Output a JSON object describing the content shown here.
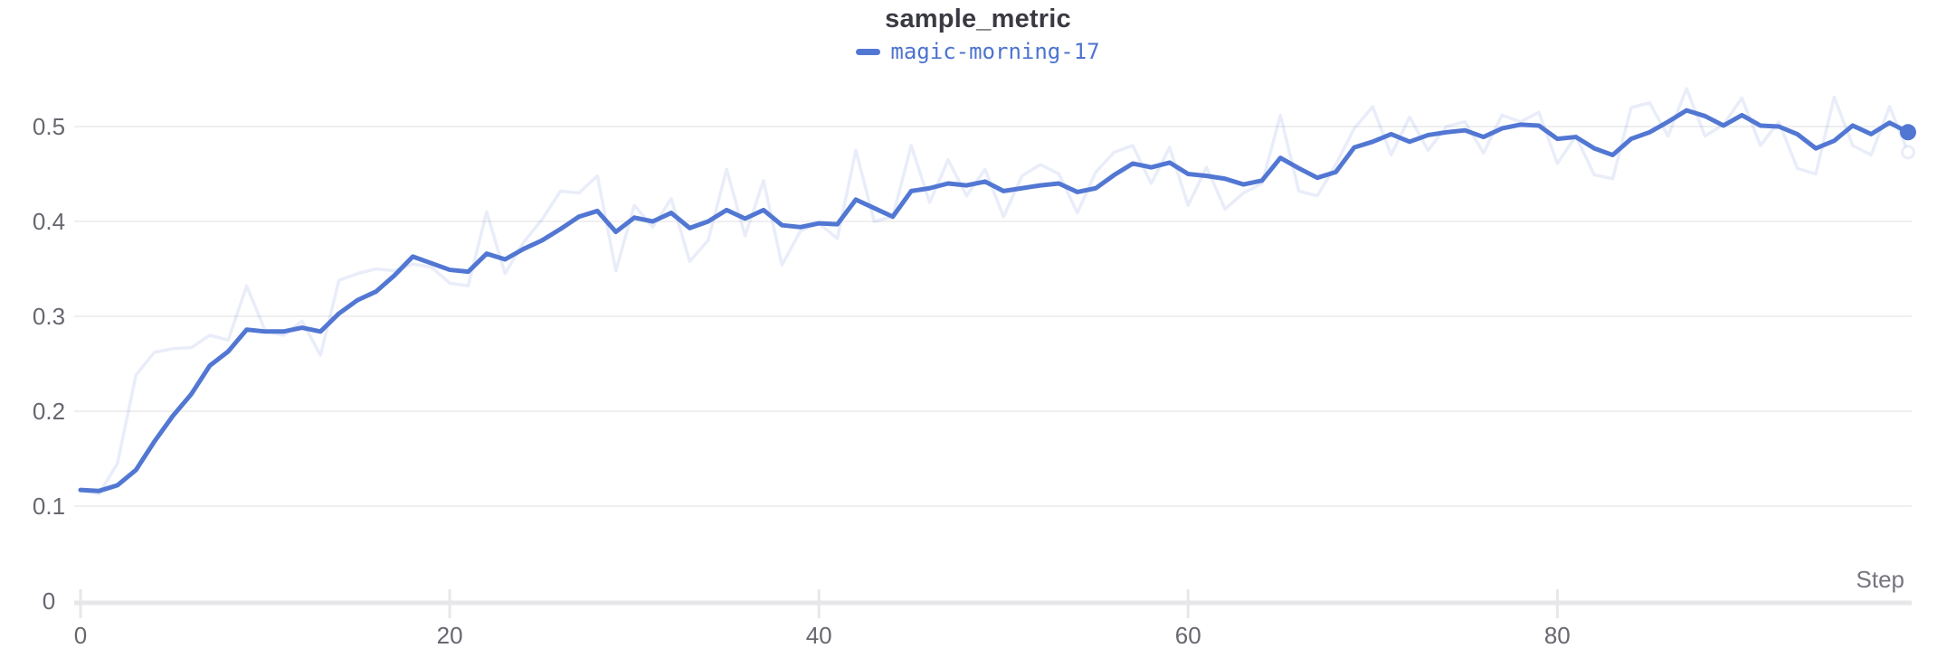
{
  "title": "sample_metric",
  "legend": {
    "items": [
      {
        "label": "magic-morning-17",
        "color": "#5277d3"
      }
    ]
  },
  "axes": {
    "xlabel": "Step",
    "x_ticks": [
      0,
      20,
      40,
      60,
      80
    ],
    "y_ticks": [
      0,
      0.1,
      0.2,
      0.3,
      0.4,
      0.5
    ]
  },
  "colors": {
    "line": "#5277d3",
    "line_faint": "rgba(82,119,211,0.13)",
    "gridline": "#efeff0",
    "axis": "#e7e7ea",
    "tick_text": "#67676f",
    "title_text": "#3a3a42",
    "legend_text": "#4c73cf"
  },
  "chart_data": {
    "type": "line",
    "title": "sample_metric",
    "xlabel": "Step",
    "ylabel": "",
    "xlim": [
      0,
      99.5
    ],
    "ylim": [
      0,
      0.55
    ],
    "x_ticks": [
      0,
      20,
      40,
      60,
      80
    ],
    "y_ticks": [
      0,
      0.1,
      0.2,
      0.3,
      0.4,
      0.5
    ],
    "grid": "horizontal",
    "legend_position": "top-center",
    "x": [
      0,
      1,
      2,
      3,
      4,
      5,
      6,
      7,
      8,
      9,
      10,
      11,
      12,
      13,
      14,
      15,
      16,
      17,
      18,
      19,
      20,
      21,
      22,
      23,
      24,
      25,
      26,
      27,
      28,
      29,
      30,
      31,
      32,
      33,
      34,
      35,
      36,
      37,
      38,
      39,
      40,
      41,
      42,
      43,
      44,
      45,
      46,
      47,
      48,
      49,
      50,
      51,
      52,
      53,
      54,
      55,
      56,
      57,
      58,
      59,
      60,
      61,
      62,
      63,
      64,
      65,
      66,
      67,
      68,
      69,
      70,
      71,
      72,
      73,
      74,
      75,
      76,
      77,
      78,
      79,
      80,
      81,
      82,
      83,
      84,
      85,
      86,
      87,
      88,
      89,
      90,
      91,
      92,
      93,
      94,
      95,
      96,
      97,
      98,
      99
    ],
    "series": [
      {
        "name": "magic-morning-17",
        "role": "smoothed",
        "color": "#5277d3",
        "values": [
          0.117,
          0.116,
          0.122,
          0.138,
          0.168,
          0.195,
          0.218,
          0.248,
          0.263,
          0.286,
          0.284,
          0.284,
          0.288,
          0.284,
          0.303,
          0.317,
          0.326,
          0.343,
          0.363,
          0.356,
          0.349,
          0.347,
          0.366,
          0.36,
          0.371,
          0.38,
          0.392,
          0.405,
          0.411,
          0.389,
          0.404,
          0.4,
          0.409,
          0.393,
          0.4,
          0.412,
          0.403,
          0.412,
          0.396,
          0.394,
          0.398,
          0.397,
          0.423,
          0.414,
          0.405,
          0.432,
          0.435,
          0.44,
          0.438,
          0.442,
          0.432,
          0.435,
          0.438,
          0.44,
          0.431,
          0.435,
          0.449,
          0.461,
          0.457,
          0.462,
          0.45,
          0.448,
          0.445,
          0.439,
          0.443,
          0.467,
          0.456,
          0.446,
          0.452,
          0.478,
          0.484,
          0.492,
          0.484,
          0.491,
          0.494,
          0.496,
          0.489,
          0.498,
          0.502,
          0.501,
          0.487,
          0.489,
          0.477,
          0.47,
          0.487,
          0.494,
          0.505,
          0.517,
          0.511,
          0.501,
          0.512,
          0.501,
          0.5,
          0.492,
          0.477,
          0.485,
          0.501,
          0.492,
          0.504,
          0.494
        ]
      },
      {
        "name": "magic-morning-17 (original)",
        "role": "raw",
        "color": "rgba(82,119,211,0.13)",
        "values": [
          0.117,
          0.113,
          0.145,
          0.238,
          0.262,
          0.266,
          0.267,
          0.28,
          0.275,
          0.332,
          0.285,
          0.28,
          0.295,
          0.259,
          0.338,
          0.345,
          0.35,
          0.348,
          0.355,
          0.352,
          0.335,
          0.332,
          0.41,
          0.345,
          0.378,
          0.402,
          0.432,
          0.43,
          0.448,
          0.348,
          0.417,
          0.394,
          0.424,
          0.358,
          0.38,
          0.455,
          0.385,
          0.443,
          0.354,
          0.39,
          0.398,
          0.382,
          0.475,
          0.4,
          0.405,
          0.48,
          0.42,
          0.465,
          0.427,
          0.455,
          0.405,
          0.448,
          0.46,
          0.45,
          0.409,
          0.452,
          0.473,
          0.48,
          0.44,
          0.478,
          0.417,
          0.457,
          0.413,
          0.43,
          0.44,
          0.512,
          0.432,
          0.427,
          0.46,
          0.498,
          0.521,
          0.47,
          0.51,
          0.475,
          0.5,
          0.505,
          0.472,
          0.512,
          0.505,
          0.515,
          0.461,
          0.49,
          0.449,
          0.445,
          0.52,
          0.525,
          0.49,
          0.54,
          0.49,
          0.502,
          0.53,
          0.48,
          0.505,
          0.456,
          0.45,
          0.531,
          0.48,
          0.47,
          0.521,
          0.473
        ]
      }
    ]
  }
}
